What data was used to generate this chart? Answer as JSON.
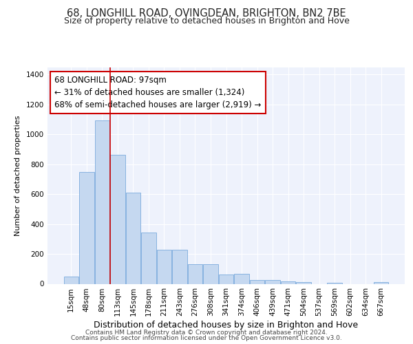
{
  "title": "68, LONGHILL ROAD, OVINGDEAN, BRIGHTON, BN2 7BE",
  "subtitle": "Size of property relative to detached houses in Brighton and Hove",
  "xlabel": "Distribution of detached houses by size in Brighton and Hove",
  "ylabel": "Number of detached properties",
  "bar_color": "#c5d8f0",
  "bar_edge_color": "#7aaadc",
  "annotation_line_color": "#cc0000",
  "annotation_box_edge_color": "#cc0000",
  "annotation_line1": "68 LONGHILL ROAD: 97sqm",
  "annotation_line2": "← 31% of detached houses are smaller (1,324)",
  "annotation_line3": "68% of semi-detached houses are larger (2,919) →",
  "bin_labels": [
    "15sqm",
    "48sqm",
    "80sqm",
    "113sqm",
    "145sqm",
    "178sqm",
    "211sqm",
    "243sqm",
    "276sqm",
    "308sqm",
    "341sqm",
    "374sqm",
    "406sqm",
    "439sqm",
    "471sqm",
    "504sqm",
    "537sqm",
    "569sqm",
    "602sqm",
    "634sqm",
    "667sqm"
  ],
  "bar_heights": [
    50,
    750,
    1095,
    865,
    610,
    345,
    228,
    228,
    130,
    130,
    62,
    68,
    25,
    25,
    18,
    12,
    0,
    8,
    0,
    0,
    10
  ],
  "ylim": [
    0,
    1450
  ],
  "yticks": [
    0,
    200,
    400,
    600,
    800,
    1000,
    1200,
    1400
  ],
  "property_bin_index": 2,
  "background_color": "#eef2fc",
  "footer_line1": "Contains HM Land Registry data © Crown copyright and database right 2024.",
  "footer_line2": "Contains public sector information licensed under the Open Government Licence v3.0.",
  "title_fontsize": 10.5,
  "subtitle_fontsize": 9,
  "xlabel_fontsize": 9,
  "ylabel_fontsize": 8,
  "tick_fontsize": 7.5,
  "footer_fontsize": 6.5,
  "annotation_fontsize": 8.5
}
